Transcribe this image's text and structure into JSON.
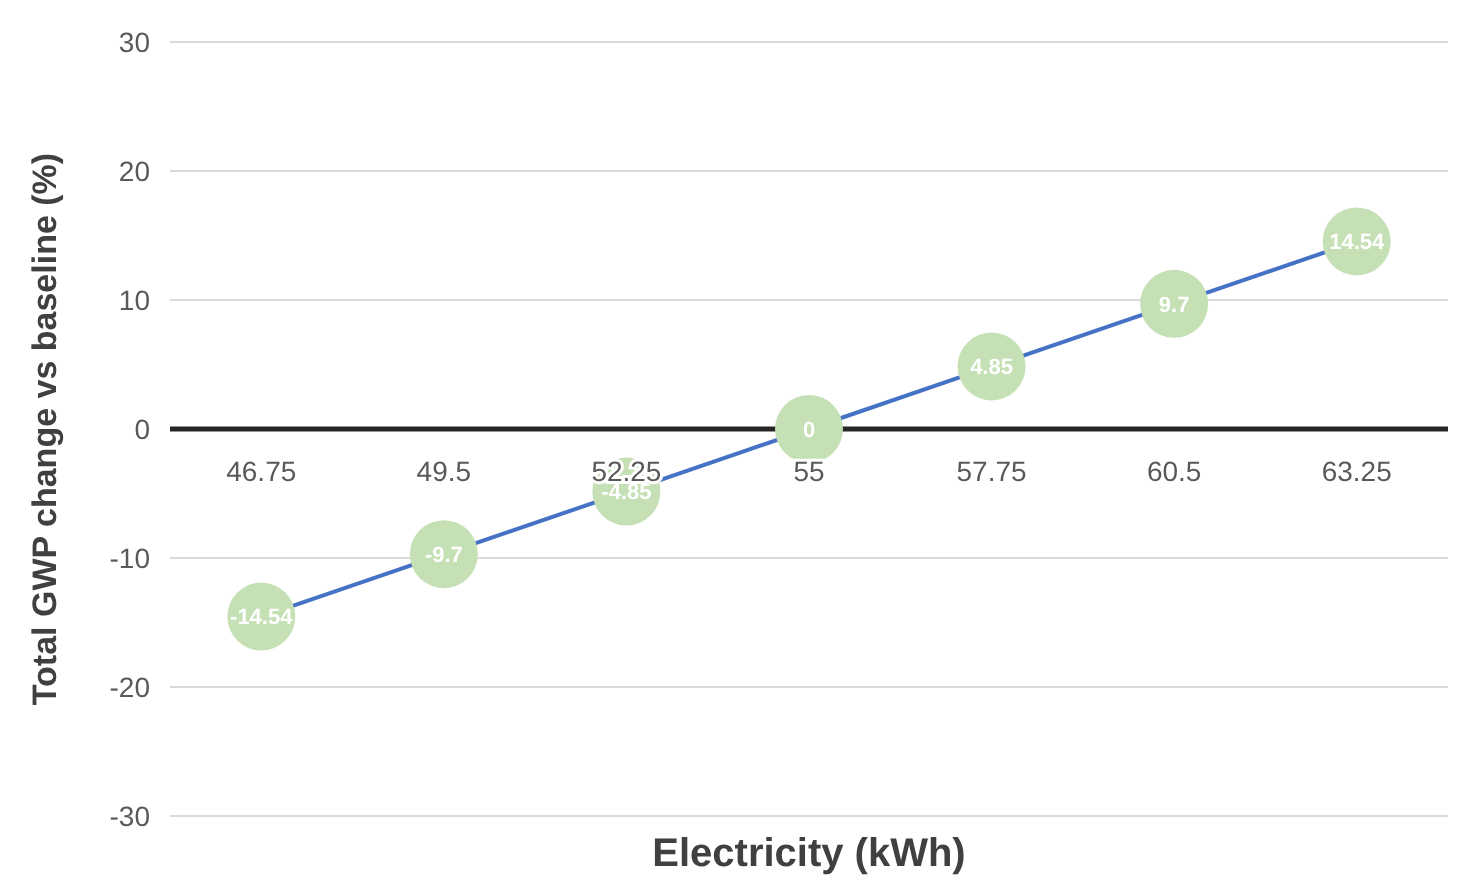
{
  "chart_data": {
    "type": "line",
    "xlabel": "Electricity (kWh)",
    "ylabel": "Total GWP change vs baseline (%)",
    "categories": [
      "46.75",
      "49.5",
      "52.25",
      "55",
      "57.75",
      "60.5",
      "63.25"
    ],
    "series": [
      {
        "color": "#4472c4",
        "values": [
          -14.54,
          -9.7,
          -4.85,
          0,
          4.85,
          9.7,
          14.54
        ]
      }
    ],
    "marker": "circle",
    "data_labels": true,
    "ylim": [
      -30,
      30
    ],
    "yticks": [
      -30,
      -20,
      -10,
      0,
      10,
      20,
      30
    ],
    "grid": "y"
  }
}
